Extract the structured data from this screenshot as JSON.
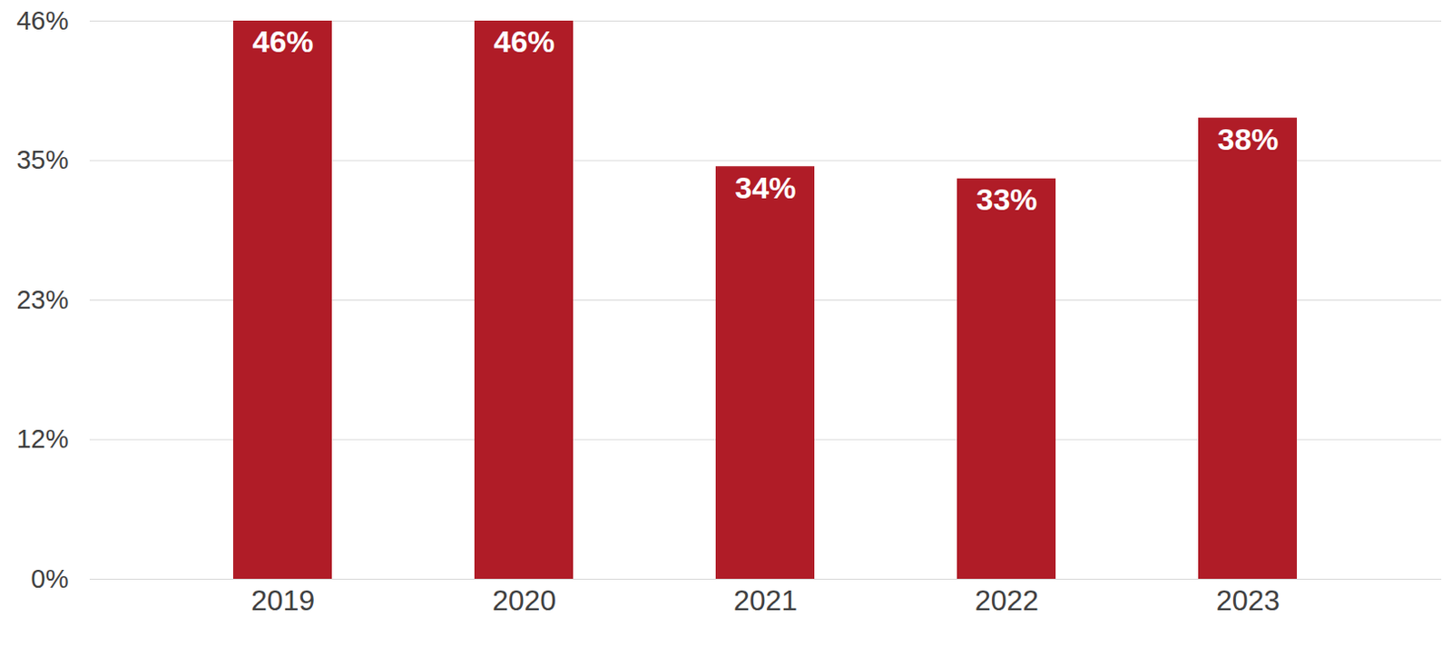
{
  "chart_data": {
    "type": "bar",
    "categories": [
      "2019",
      "2020",
      "2021",
      "2022",
      "2023"
    ],
    "values": [
      46,
      46,
      34,
      33,
      38
    ],
    "value_labels": [
      "46%",
      "46%",
      "34%",
      "33%",
      "38%"
    ],
    "color": "#b01c27",
    "ylim": [
      0,
      46
    ],
    "yticks": [
      {
        "value": 0,
        "label": "0%"
      },
      {
        "value": 11.5,
        "label": "12%"
      },
      {
        "value": 23,
        "label": "23%"
      },
      {
        "value": 34.5,
        "label": "35%"
      },
      {
        "value": 46,
        "label": "46%"
      }
    ],
    "grid": true,
    "data_labels": true
  }
}
